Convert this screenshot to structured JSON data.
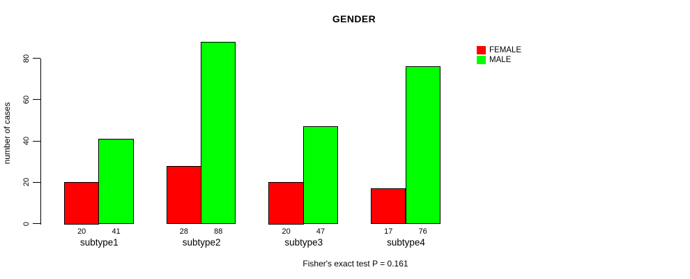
{
  "chart_data": {
    "type": "bar",
    "title": "GENDER",
    "categories": [
      "subtype1",
      "subtype2",
      "subtype3",
      "subtype4"
    ],
    "series": [
      {
        "name": "FEMALE",
        "color": "#ff0000",
        "values": [
          20,
          28,
          20,
          17
        ]
      },
      {
        "name": "MALE",
        "color": "#00ff00",
        "values": [
          41,
          88,
          47,
          76
        ]
      }
    ],
    "xlabel": "",
    "ylabel": "number of cases",
    "ylim": [
      0,
      88
    ],
    "yticks": [
      0,
      20,
      40,
      60,
      80
    ],
    "grid": false,
    "legend_position": "top-right",
    "bar_edge_color": "#000000",
    "values_shown_under_bars": true,
    "annotation": "Fisher's exact test P = 0.161"
  }
}
